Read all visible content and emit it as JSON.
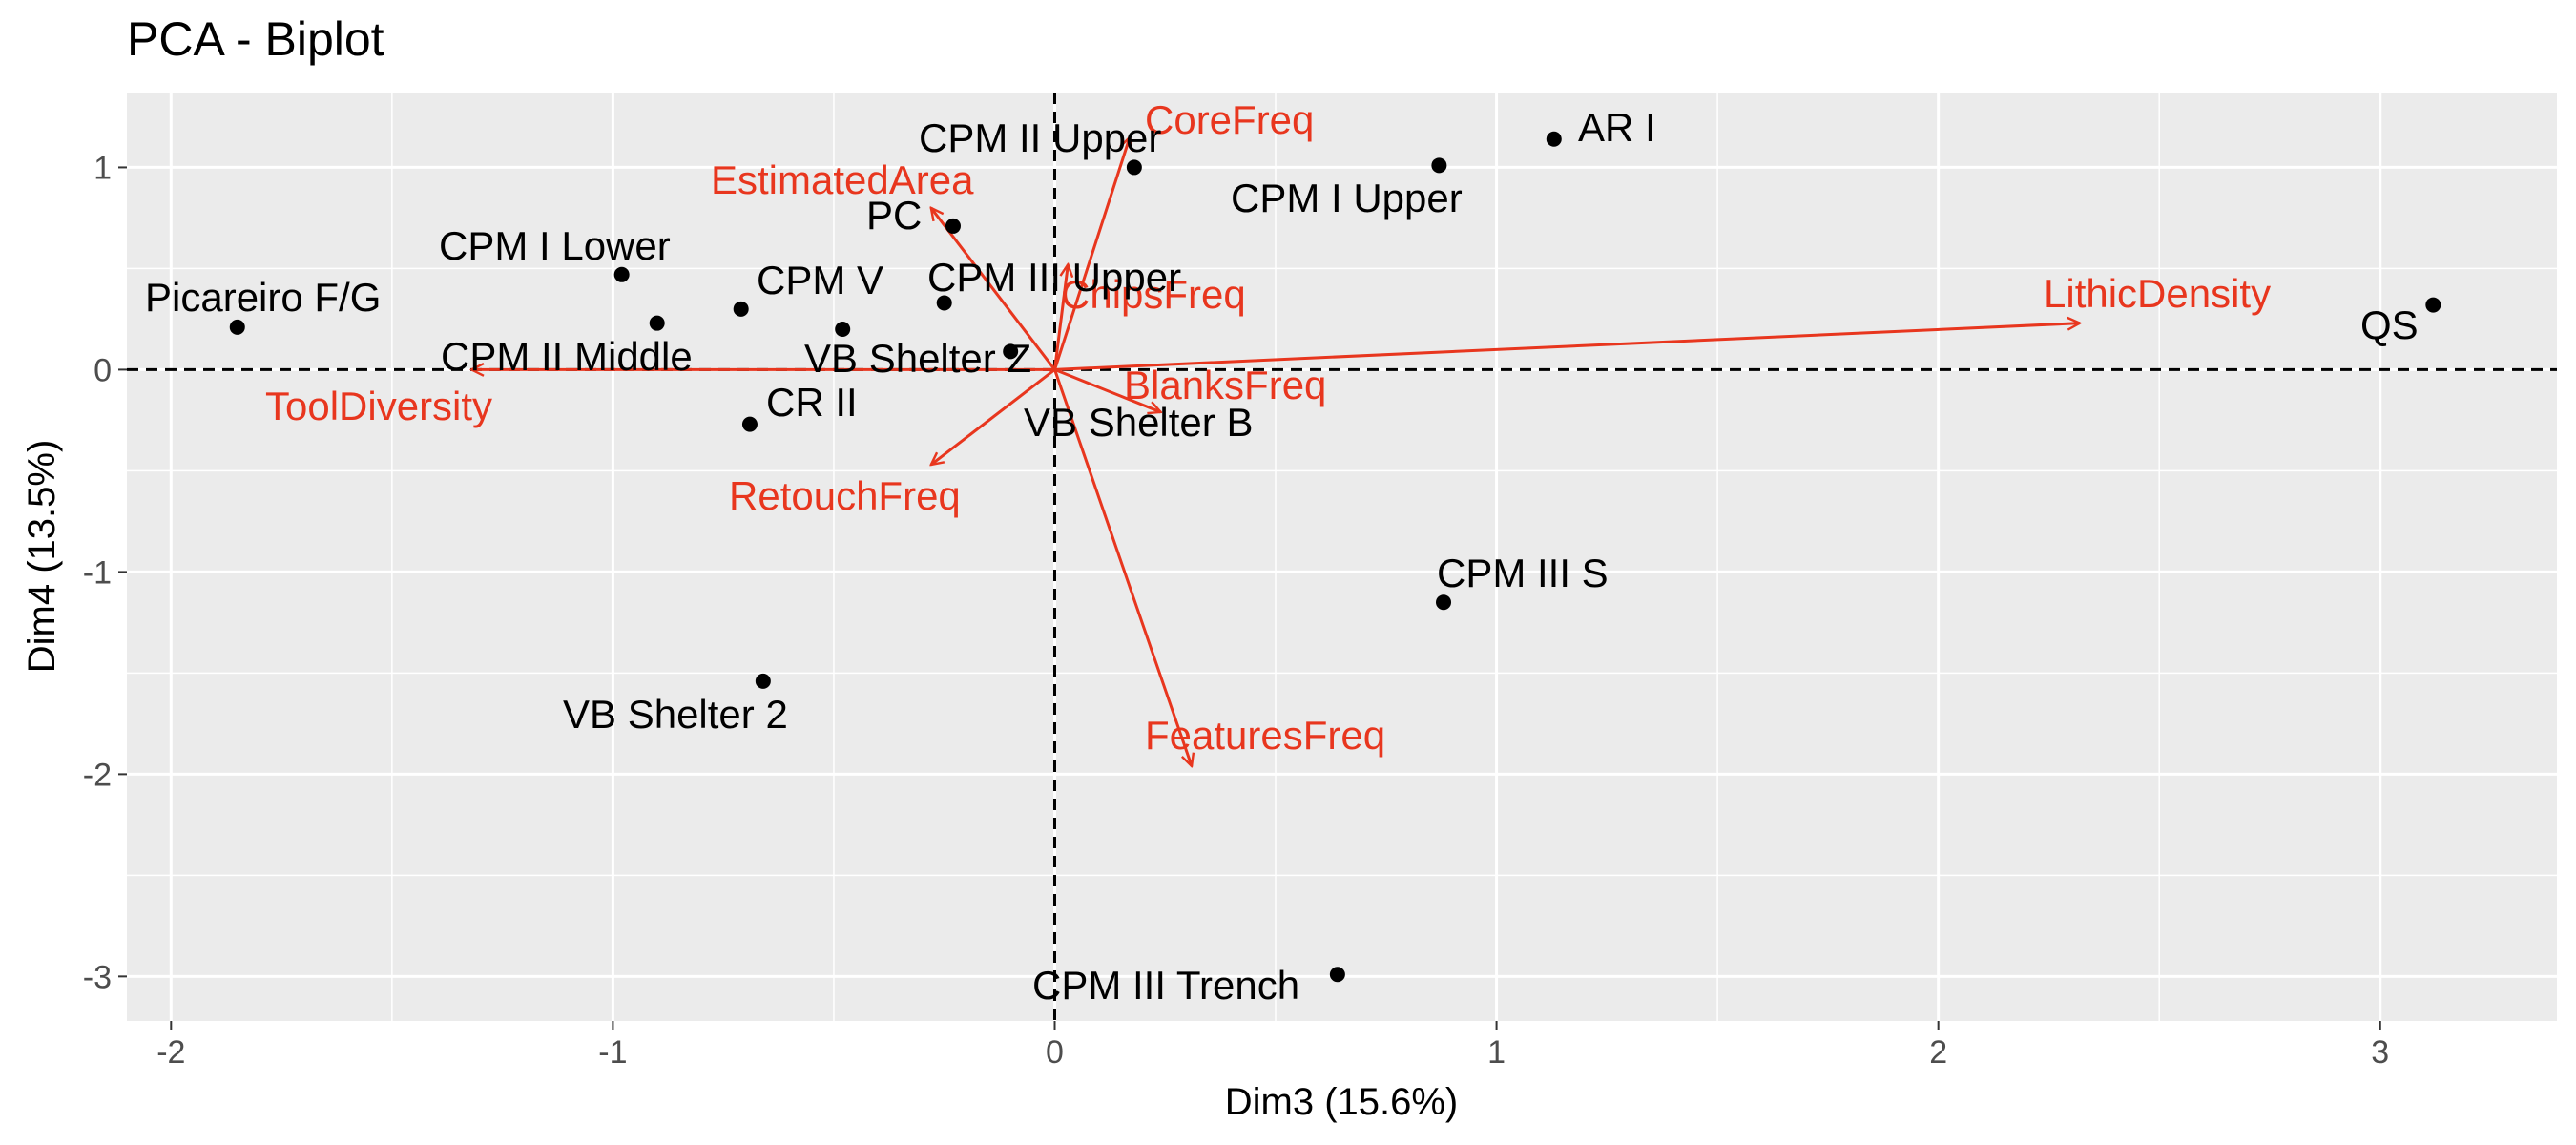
{
  "chart_data": {
    "type": "scatter",
    "title": "PCA - Biplot",
    "xlabel": "Dim3 (15.6%)",
    "ylabel": "Dim4 (13.5%)",
    "xlim": [
      -2.1,
      3.4
    ],
    "ylim": [
      -3.22,
      1.37
    ],
    "x_ticks": [
      -2,
      -1,
      0,
      1,
      2,
      3
    ],
    "y_ticks": [
      -3,
      -2,
      -1,
      0,
      1
    ],
    "grid": true,
    "reference_lines": {
      "x": 0,
      "y": 0,
      "style": "dashed"
    },
    "arrow_color": "#e8361e",
    "point_color": "#000000",
    "panel_background": "#ebebeb",
    "points": [
      {
        "label": "AR I",
        "x": 1.13,
        "y": 1.14
      },
      {
        "label": "CPM I Upper",
        "x": 0.87,
        "y": 1.01
      },
      {
        "label": "CPM II Upper",
        "x": 0.18,
        "y": 1.0
      },
      {
        "label": "PC",
        "x": -0.23,
        "y": 0.71
      },
      {
        "label": "CPM I Lower",
        "x": -0.98,
        "y": 0.47
      },
      {
        "label": "CPM II Middle",
        "x": -0.9,
        "y": 0.23
      },
      {
        "label": "CPM V",
        "x": -0.71,
        "y": 0.3
      },
      {
        "label": "CPM III Upper",
        "x": -0.25,
        "y": 0.33
      },
      {
        "label": "Picareiro F/G",
        "x": -1.85,
        "y": 0.21
      },
      {
        "label": "VB Shelter Z",
        "x": -0.1,
        "y": 0.09
      },
      {
        "label": "VB Shelter B",
        "x": -0.48,
        "y": 0.2
      },
      {
        "label": "CR II",
        "x": -0.69,
        "y": -0.27
      },
      {
        "label": "QS",
        "x": 3.12,
        "y": 0.32
      },
      {
        "label": "CPM III S",
        "x": 0.88,
        "y": -1.15
      },
      {
        "label": "VB Shelter 2",
        "x": -0.66,
        "y": -1.54
      },
      {
        "label": "CPM III Trench",
        "x": 0.64,
        "y": -2.99
      }
    ],
    "arrows": [
      {
        "label": "CoreFreq",
        "x": 0.17,
        "y": 1.15
      },
      {
        "label": "EstimatedArea",
        "x": -0.28,
        "y": 0.8
      },
      {
        "label": "ChipsFreq",
        "x": 0.03,
        "y": 0.52
      },
      {
        "label": "LithicDensity",
        "x": 2.32,
        "y": 0.23
      },
      {
        "label": "BlanksFreq",
        "x": 0.24,
        "y": -0.21
      },
      {
        "label": "ToolDiversity",
        "x": -1.32,
        "y": 0.0
      },
      {
        "label": "RetouchFreq",
        "x": -0.28,
        "y": -0.47
      },
      {
        "label": "FeaturesFreq",
        "x": 0.31,
        "y": -1.96
      }
    ]
  }
}
